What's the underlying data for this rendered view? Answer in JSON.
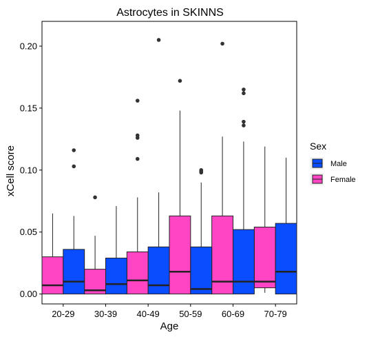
{
  "chart_data": {
    "type": "boxplot",
    "title": "Astrocytes in SKINNS",
    "xlabel": "Age",
    "ylabel": "xCell score",
    "ylim": [
      -0.008,
      0.22
    ],
    "yticks": [
      0.0,
      0.05,
      0.1,
      0.15,
      0.2
    ],
    "ytick_labels": [
      "0.00",
      "0.05",
      "0.10",
      "0.15",
      "0.20"
    ],
    "grid": false,
    "legend_placement": "right",
    "legend_title": "Sex",
    "categories": [
      "20-29",
      "30-39",
      "40-49",
      "50-59",
      "60-69",
      "70-79"
    ],
    "colors": {
      "Female": "#ff44c4",
      "Male": "#0a4cff",
      "outline": "#222222"
    },
    "series": [
      {
        "name": "Female",
        "boxes": [
          {
            "min": 0.0,
            "q1": 0.0,
            "median": 0.007,
            "q3": 0.03,
            "max": 0.065,
            "outliers": []
          },
          {
            "min": 0.0,
            "q1": 0.0,
            "median": 0.003,
            "q3": 0.02,
            "max": 0.047,
            "outliers": [
              0.078
            ]
          },
          {
            "min": 0.0,
            "q1": 0.0,
            "median": 0.011,
            "q3": 0.034,
            "max": 0.078,
            "outliers": [
              0.109,
              0.126,
              0.128,
              0.156
            ]
          },
          {
            "min": 0.0,
            "q1": 0.0,
            "median": 0.018,
            "q3": 0.063,
            "max": 0.148,
            "outliers": [
              0.172
            ]
          },
          {
            "min": 0.0,
            "q1": 0.0,
            "median": 0.01,
            "q3": 0.063,
            "max": 0.127,
            "outliers": [
              0.202
            ]
          },
          {
            "min": 0.001,
            "q1": 0.005,
            "median": 0.01,
            "q3": 0.054,
            "max": 0.119,
            "outliers": []
          }
        ]
      },
      {
        "name": "Male",
        "boxes": [
          {
            "min": 0.0,
            "q1": 0.0,
            "median": 0.01,
            "q3": 0.036,
            "max": 0.063,
            "outliers": [
              0.103,
              0.116
            ]
          },
          {
            "min": 0.0,
            "q1": 0.0,
            "median": 0.008,
            "q3": 0.029,
            "max": 0.071,
            "outliers": []
          },
          {
            "min": 0.0,
            "q1": 0.0,
            "median": 0.007,
            "q3": 0.038,
            "max": 0.082,
            "outliers": [
              0.205
            ]
          },
          {
            "min": 0.0,
            "q1": 0.0,
            "median": 0.004,
            "q3": 0.038,
            "max": 0.09,
            "outliers": [
              0.098,
              0.099,
              0.1
            ]
          },
          {
            "min": 0.0,
            "q1": 0.0,
            "median": 0.01,
            "q3": 0.052,
            "max": 0.123,
            "outliers": [
              0.136,
              0.139,
              0.162,
              0.165
            ]
          },
          {
            "min": 0.0,
            "q1": 0.0,
            "median": 0.018,
            "q3": 0.057,
            "max": 0.11,
            "outliers": []
          }
        ]
      }
    ],
    "legend_order": [
      "Male",
      "Female"
    ]
  }
}
